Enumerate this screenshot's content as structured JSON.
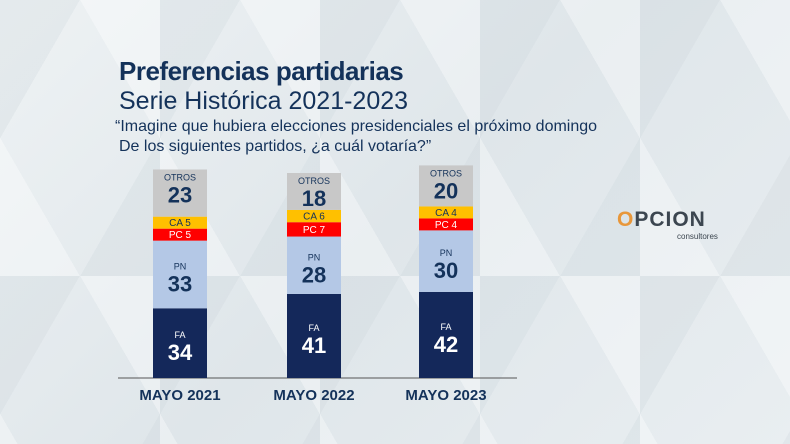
{
  "title": "Preferencias partidarias",
  "subtitle": "Serie Histórica 2021-2023",
  "question_line1": "“Imagine que hubiera elecciones presidenciales el próximo domingo",
  "question_line2": "De los siguientes partidos, ¿a cuál votaría?”",
  "logo": {
    "text": "OPCION",
    "sub": "consultores"
  },
  "chart_data": {
    "type": "bar",
    "stacked": true,
    "categories": [
      "MAYO 2021",
      "MAYO 2022",
      "MAYO 2023"
    ],
    "ylim": [
      0,
      100
    ],
    "series": [
      {
        "name": "FA",
        "values": [
          34,
          41,
          42
        ],
        "color": "#14285a",
        "text": "#ffffff"
      },
      {
        "name": "PN",
        "values": [
          33,
          28,
          30
        ],
        "color": "#b4c8e6",
        "text": "#14325a"
      },
      {
        "name": "PC",
        "values": [
          5,
          7,
          4
        ],
        "color": "#ff0000",
        "text": "#ffffff"
      },
      {
        "name": "CA",
        "values": [
          5,
          6,
          4
        ],
        "color": "#ffc000",
        "text": "#14325a"
      },
      {
        "name": "OTROS",
        "values": [
          23,
          18,
          20
        ],
        "color": "#c8c8c8",
        "text": "#14325a"
      }
    ]
  }
}
